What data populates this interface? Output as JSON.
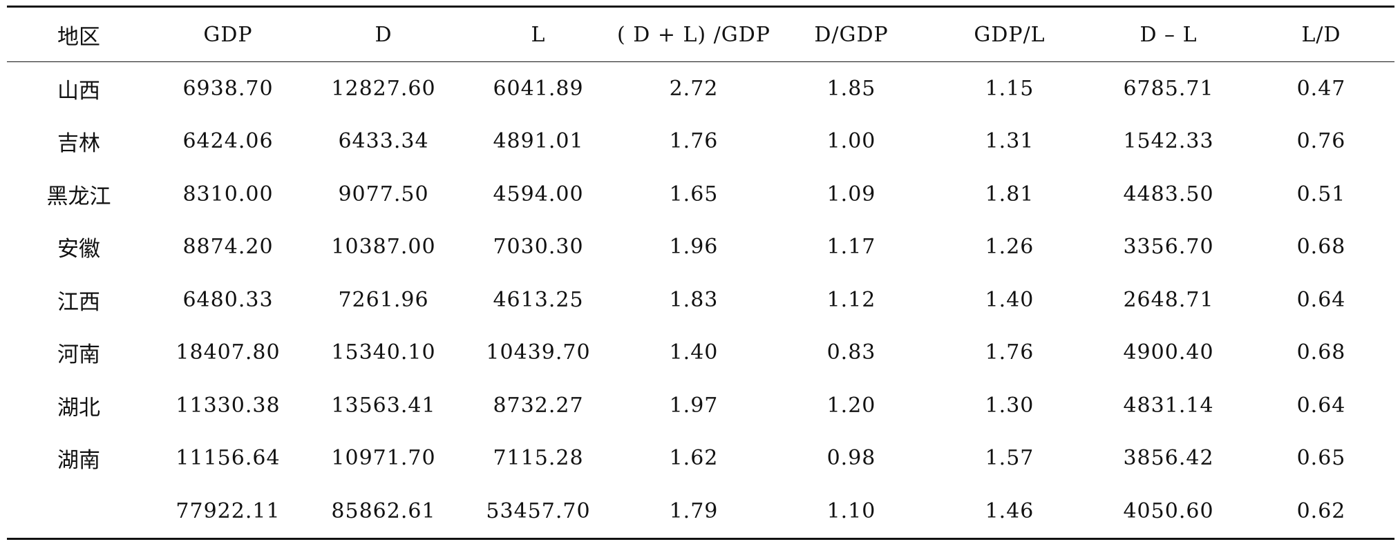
{
  "table": {
    "headers": [
      "地区",
      "GDP",
      "D",
      "L",
      "( D + L) /GDP",
      "D/GDP",
      "GDP/L",
      "D – L",
      "L/D"
    ],
    "rows": [
      [
        "山西",
        "6938.70",
        "12827.60",
        "6041.89",
        "2.72",
        "1.85",
        "1.15",
        "6785.71",
        "0.47"
      ],
      [
        "吉林",
        "6424.06",
        "6433.34",
        "4891.01",
        "1.76",
        "1.00",
        "1.31",
        "1542.33",
        "0.76"
      ],
      [
        "黑龙江",
        "8310.00",
        "9077.50",
        "4594.00",
        "1.65",
        "1.09",
        "1.81",
        "4483.50",
        "0.51"
      ],
      [
        "安徽",
        "8874.20",
        "10387.00",
        "7030.30",
        "1.96",
        "1.17",
        "1.26",
        "3356.70",
        "0.68"
      ],
      [
        "江西",
        "6480.33",
        "7261.96",
        "4613.25",
        "1.83",
        "1.12",
        "1.40",
        "2648.71",
        "0.64"
      ],
      [
        "河南",
        "18407.80",
        "15340.10",
        "10439.70",
        "1.40",
        "0.83",
        "1.76",
        "4900.40",
        "0.68"
      ],
      [
        "湖北",
        "11330.38",
        "13563.41",
        "8732.27",
        "1.97",
        "1.20",
        "1.30",
        "4831.14",
        "0.64"
      ],
      [
        "湖南",
        "11156.64",
        "10971.70",
        "7115.28",
        "1.62",
        "0.98",
        "1.57",
        "3856.42",
        "0.65"
      ],
      [
        "",
        "77922.11",
        "85862.61",
        "53457.70",
        "1.79",
        "1.10",
        "1.46",
        "4050.60",
        "0.62"
      ]
    ]
  }
}
